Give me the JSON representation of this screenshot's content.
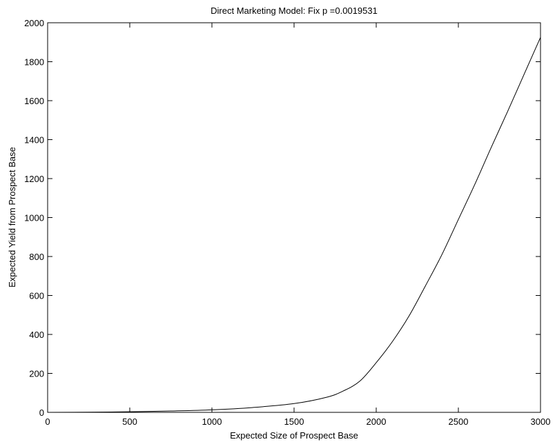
{
  "chart_data": {
    "type": "line",
    "title": "Direct Marketing Model: Fix p =0.0019531",
    "xlabel": "Expected Size of Prospect Base",
    "ylabel": "Expected Yield from Prospect Base",
    "xlim": [
      0,
      3000
    ],
    "ylim": [
      0,
      2000
    ],
    "xticks": [
      0,
      500,
      1000,
      1500,
      2000,
      2500,
      3000
    ],
    "yticks": [
      0,
      200,
      400,
      600,
      800,
      1000,
      1200,
      1400,
      1600,
      1800,
      2000
    ],
    "xtick_labels": [
      "0",
      "500",
      "1000",
      "1500",
      "2000",
      "2500",
      "3000"
    ],
    "ytick_labels": [
      "0",
      "200",
      "400",
      "600",
      "800",
      "1000",
      "1200",
      "1400",
      "1600",
      "1800",
      "2000"
    ],
    "grid": false,
    "legend": "none",
    "series_color": "#000000",
    "series": [
      {
        "x": [
          0,
          250,
          500,
          750,
          1000,
          1250,
          1500,
          1700,
          1800,
          1900,
          2000,
          2100,
          2200,
          2300,
          2400,
          2500,
          2600,
          2700,
          2800,
          2900,
          3000
        ],
        "y": [
          0,
          1,
          3,
          7,
          13,
          25,
          45,
          78,
          110,
          160,
          255,
          365,
          495,
          650,
          810,
          990,
          1170,
          1360,
          1545,
          1735,
          1925
        ]
      }
    ]
  }
}
